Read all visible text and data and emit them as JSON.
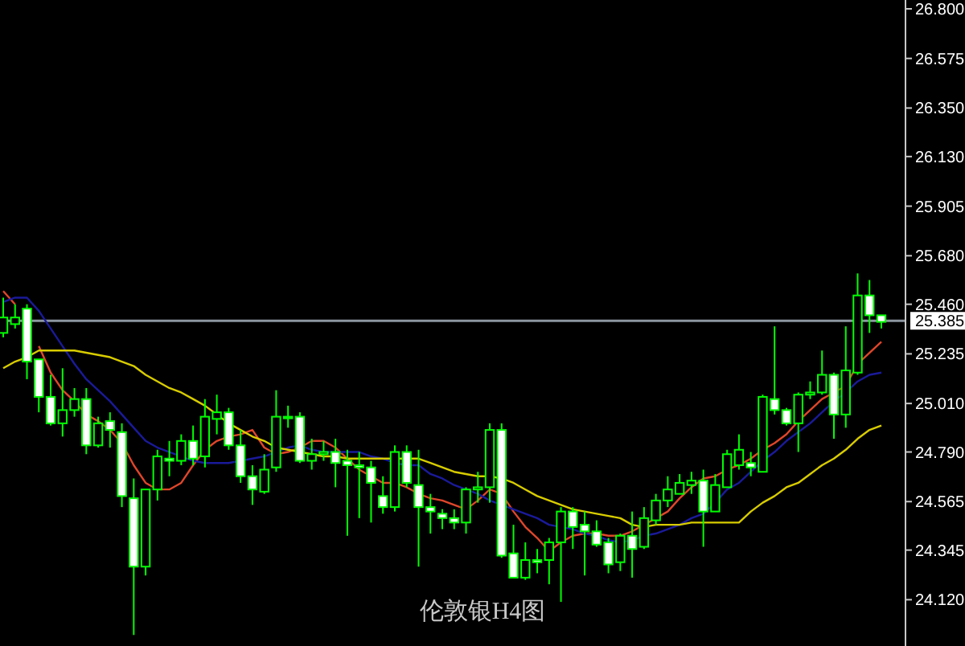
{
  "chart_data": {
    "type": "candlestick",
    "title": "伦敦银H4图",
    "categories": [
      null,
      null,
      null,
      null,
      null,
      null,
      null,
      null,
      null,
      null,
      null,
      null,
      null,
      null,
      null,
      null,
      null,
      null,
      null,
      null,
      null,
      null,
      null,
      null,
      null,
      null,
      null,
      null,
      null,
      null,
      null,
      null,
      null,
      null,
      null,
      null,
      null,
      null,
      null,
      null,
      null,
      null,
      null,
      null,
      null,
      null,
      null,
      null,
      null,
      null,
      null,
      null,
      null,
      null,
      null,
      null,
      null,
      null,
      null,
      null,
      null,
      null,
      null,
      null,
      null,
      null,
      null,
      null,
      null,
      null,
      null,
      null,
      null,
      null,
      null
    ],
    "color": "#00ff00",
    "ohlc": [
      [
        25.33,
        25.49,
        25.31,
        25.4
      ],
      [
        25.37,
        25.46,
        25.35,
        25.4
      ],
      [
        25.44,
        25.46,
        25.12,
        25.2
      ],
      [
        25.21,
        25.21,
        24.97,
        25.04
      ],
      [
        25.04,
        25.14,
        24.91,
        24.92
      ],
      [
        24.92,
        25.17,
        24.86,
        24.98
      ],
      [
        24.98,
        25.08,
        24.95,
        25.03
      ],
      [
        25.03,
        25.08,
        24.78,
        24.82
      ],
      [
        24.82,
        24.95,
        24.81,
        24.92
      ],
      [
        24.93,
        24.97,
        24.81,
        24.89
      ],
      [
        24.88,
        24.92,
        24.54,
        24.59
      ],
      [
        24.58,
        24.67,
        23.96,
        24.27
      ],
      [
        24.27,
        24.62,
        24.23,
        24.62
      ],
      [
        24.62,
        24.8,
        24.57,
        24.77
      ],
      [
        24.76,
        24.84,
        24.68,
        24.75
      ],
      [
        24.75,
        24.87,
        24.73,
        24.84
      ],
      [
        24.84,
        24.91,
        24.73,
        24.76
      ],
      [
        24.77,
        25.03,
        24.72,
        24.95
      ],
      [
        24.94,
        25.05,
        24.87,
        24.97
      ],
      [
        24.97,
        24.99,
        24.8,
        24.82
      ],
      [
        24.82,
        24.89,
        24.65,
        24.68
      ],
      [
        24.68,
        24.73,
        24.55,
        24.62
      ],
      [
        24.61,
        24.78,
        24.6,
        24.71
      ],
      [
        24.72,
        25.07,
        24.7,
        24.95
      ],
      [
        24.95,
        25.0,
        24.9,
        24.95
      ],
      [
        24.95,
        24.97,
        24.74,
        24.75
      ],
      [
        24.75,
        24.85,
        24.71,
        24.78
      ],
      [
        24.78,
        24.84,
        24.75,
        24.79
      ],
      [
        24.79,
        24.85,
        24.63,
        24.74
      ],
      [
        24.75,
        24.8,
        24.41,
        24.73
      ],
      [
        24.73,
        24.79,
        24.49,
        24.72
      ],
      [
        24.72,
        24.75,
        24.47,
        24.65
      ],
      [
        24.59,
        24.68,
        24.51,
        24.54
      ],
      [
        24.54,
        24.82,
        24.52,
        24.79
      ],
      [
        24.79,
        24.82,
        24.63,
        24.65
      ],
      [
        24.64,
        24.8,
        24.27,
        24.54
      ],
      [
        24.54,
        24.6,
        24.42,
        24.52
      ],
      [
        24.51,
        24.53,
        24.44,
        24.49
      ],
      [
        24.49,
        24.53,
        24.44,
        24.47
      ],
      [
        24.47,
        24.63,
        24.42,
        24.62
      ],
      [
        24.62,
        24.7,
        24.56,
        24.63
      ],
      [
        24.63,
        24.92,
        24.56,
        24.89
      ],
      [
        24.89,
        24.92,
        24.31,
        24.32
      ],
      [
        24.33,
        24.46,
        24.22,
        24.22
      ],
      [
        24.22,
        24.38,
        24.21,
        24.3
      ],
      [
        24.3,
        24.35,
        24.24,
        24.29
      ],
      [
        24.3,
        24.4,
        24.19,
        24.38
      ],
      [
        24.38,
        24.54,
        24.11,
        24.52
      ],
      [
        24.52,
        24.54,
        24.35,
        24.45
      ],
      [
        24.46,
        24.52,
        24.23,
        24.43
      ],
      [
        24.43,
        24.48,
        24.36,
        24.37
      ],
      [
        24.38,
        24.4,
        24.24,
        24.28
      ],
      [
        24.29,
        24.42,
        24.25,
        24.41
      ],
      [
        24.41,
        24.52,
        24.22,
        24.35
      ],
      [
        24.36,
        24.54,
        24.35,
        24.49
      ],
      [
        24.48,
        24.6,
        24.46,
        24.57
      ],
      [
        24.57,
        24.68,
        24.54,
        24.62
      ],
      [
        24.6,
        24.69,
        24.6,
        24.65
      ],
      [
        24.64,
        24.7,
        24.6,
        24.66
      ],
      [
        24.66,
        24.71,
        24.36,
        24.52
      ],
      [
        24.52,
        24.69,
        24.52,
        24.64
      ],
      [
        24.63,
        24.8,
        24.63,
        24.78
      ],
      [
        24.73,
        24.87,
        24.71,
        24.8
      ],
      [
        24.74,
        24.79,
        24.68,
        24.72
      ],
      [
        24.7,
        25.05,
        24.7,
        25.04
      ],
      [
        25.03,
        25.36,
        24.96,
        24.98
      ],
      [
        24.98,
        24.99,
        24.91,
        24.92
      ],
      [
        24.92,
        25.06,
        24.79,
        25.05
      ],
      [
        25.05,
        25.11,
        25.03,
        25.06
      ],
      [
        25.06,
        25.25,
        25.05,
        25.14
      ],
      [
        25.14,
        25.15,
        24.85,
        24.96
      ],
      [
        24.96,
        25.36,
        24.9,
        25.16
      ],
      [
        25.15,
        25.6,
        25.14,
        25.5
      ],
      [
        25.5,
        25.57,
        25.33,
        25.41
      ],
      [
        25.41,
        25.41,
        25.35,
        25.38
      ]
    ],
    "series": [
      {
        "type": "line",
        "color": "#e0462a",
        "values": [
          25.52,
          25.46,
          null,
          25.27,
          25.15,
          25.07,
          25.02,
          24.96,
          24.93,
          24.89,
          24.83,
          24.73,
          24.65,
          24.62,
          24.62,
          24.65,
          24.73,
          24.8,
          24.84,
          24.86,
          24.87,
          24.89,
          24.81,
          24.78,
          24.79,
          24.81,
          24.84,
          24.84,
          24.81,
          24.76,
          24.71,
          24.68,
          24.65,
          24.65,
          24.63,
          24.6,
          24.58,
          24.57,
          24.55,
          24.53,
          24.57,
          24.62,
          24.6,
          24.52,
          24.45,
          24.4,
          24.34,
          24.38,
          24.41,
          24.42,
          24.42,
          24.41,
          24.41,
          24.43,
          24.46,
          24.49,
          24.52,
          24.58,
          24.63,
          24.67,
          24.68,
          24.71,
          24.73,
          24.76,
          24.8,
          24.83,
          24.87,
          24.93,
          24.98,
          25.03,
          25.06,
          25.09,
          25.19,
          25.24,
          25.29
        ]
      },
      {
        "type": "line",
        "color": "#1a1a9a",
        "values": [
          25.47,
          25.49,
          25.49,
          25.43,
          25.35,
          25.27,
          25.19,
          25.12,
          25.07,
          25.02,
          24.96,
          24.9,
          24.84,
          24.81,
          24.79,
          24.77,
          24.75,
          24.74,
          24.74,
          24.74,
          24.75,
          24.76,
          24.77,
          24.79,
          24.81,
          24.82,
          24.8,
          24.79,
          24.79,
          24.79,
          24.79,
          24.77,
          24.76,
          24.74,
          24.73,
          24.73,
          24.69,
          24.67,
          24.64,
          24.62,
          24.6,
          24.57,
          24.55,
          24.53,
          24.51,
          24.49,
          24.46,
          24.45,
          24.44,
          24.42,
          24.41,
          24.39,
          24.38,
          24.39,
          24.41,
          24.42,
          24.44,
          24.46,
          24.49,
          24.51,
          24.56,
          24.62,
          24.65,
          24.7,
          24.75,
          24.79,
          24.84,
          24.88,
          24.92,
          24.97,
          25.02,
          25.06,
          25.11,
          25.14,
          25.15
        ]
      },
      {
        "type": "line",
        "color": "#d8cc00",
        "values": [
          25.17,
          25.2,
          25.22,
          25.25,
          25.25,
          25.25,
          25.25,
          25.24,
          25.23,
          25.22,
          25.2,
          25.18,
          25.14,
          25.11,
          25.08,
          25.06,
          25.03,
          25.0,
          24.96,
          24.92,
          24.89,
          24.86,
          24.84,
          24.81,
          24.8,
          24.79,
          24.78,
          24.77,
          24.77,
          24.76,
          24.76,
          24.76,
          24.76,
          24.76,
          24.76,
          24.76,
          24.74,
          24.72,
          24.7,
          24.69,
          24.68,
          24.68,
          24.67,
          24.65,
          24.62,
          24.59,
          24.57,
          24.55,
          24.53,
          24.52,
          24.51,
          24.5,
          24.49,
          24.46,
          24.45,
          24.46,
          24.46,
          24.46,
          24.47,
          24.47,
          24.47,
          24.47,
          24.47,
          24.52,
          24.56,
          24.59,
          24.63,
          24.65,
          24.69,
          24.73,
          24.76,
          24.8,
          24.85,
          24.89,
          24.91
        ]
      }
    ],
    "ylim": [
      23.91,
      26.84
    ],
    "yticks": [
      {
        "value": 26.8,
        "label": "26.800"
      },
      {
        "value": 26.575,
        "label": "26.575"
      },
      {
        "value": 26.35,
        "label": "26.350"
      },
      {
        "value": 26.13,
        "label": "26.130"
      },
      {
        "value": 25.905,
        "label": "25.905"
      },
      {
        "value": 25.68,
        "label": "25.680"
      },
      {
        "value": 25.46,
        "label": "25.460"
      },
      {
        "value": 25.235,
        "label": "25.235"
      },
      {
        "value": 25.01,
        "label": "25.010"
      },
      {
        "value": 24.79,
        "label": "24.790"
      },
      {
        "value": 24.565,
        "label": "24.565"
      },
      {
        "value": 24.345,
        "label": "24.345"
      },
      {
        "value": 24.12,
        "label": "24.120"
      }
    ],
    "ref_lines": [
      {
        "axis": "y",
        "value": 25.385,
        "label": "25.385",
        "color": "#8c96a0"
      }
    ]
  }
}
